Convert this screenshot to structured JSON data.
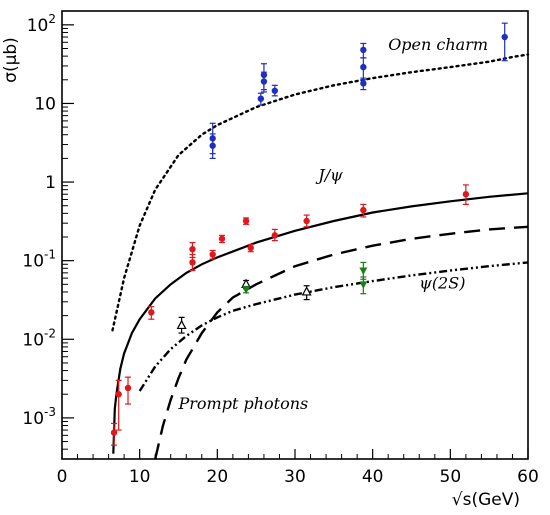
{
  "chart_data": {
    "type": "scatter",
    "xlabel": "√s(GeV)",
    "ylabel": "σ(μb)",
    "xlim": [
      0,
      60
    ],
    "ylim": [
      0.0003,
      150
    ],
    "y_scale": "log",
    "grid": false,
    "x_ticks": [
      0,
      10,
      20,
      30,
      40,
      50,
      60
    ],
    "y_ticks": [
      {
        "value": 0.001,
        "mantissa": "10",
        "exp": "-3"
      },
      {
        "value": 0.01,
        "mantissa": "10",
        "exp": "-2"
      },
      {
        "value": 0.1,
        "mantissa": "10",
        "exp": "-1"
      },
      {
        "value": 1,
        "mantissa": "1",
        "exp": ""
      },
      {
        "value": 10,
        "mantissa": "10",
        "exp": ""
      },
      {
        "value": 100,
        "mantissa": "10",
        "exp": "2"
      }
    ],
    "annotations": [
      {
        "text": "Open charm",
        "x": 42,
        "y": 48
      },
      {
        "text": "J/ψ",
        "x": 33,
        "y": 1.05
      },
      {
        "text": "ψ(2S)",
        "x": 46,
        "y": 0.044
      },
      {
        "text": "Prompt photons",
        "x": 15,
        "y": 0.0013
      }
    ],
    "series": [
      {
        "kind": "points",
        "marker": "circle",
        "color": "#1f2fbf",
        "points": [
          {
            "x": 19.4,
            "y": 3.6,
            "lo": 2.3,
            "hi": 5.6
          },
          {
            "x": 19.4,
            "y": 2.9,
            "lo": 2.0,
            "hi": 4.1
          },
          {
            "x": 25.6,
            "y": 11.5,
            "lo": 9.5,
            "hi": 13.5
          },
          {
            "x": 26.0,
            "y": 23,
            "lo": 15,
            "hi": 32
          },
          {
            "x": 26.0,
            "y": 19,
            "lo": 14,
            "hi": 25
          },
          {
            "x": 27.4,
            "y": 14.5,
            "lo": 12.5,
            "hi": 17
          },
          {
            "x": 38.8,
            "y": 48,
            "lo": 38,
            "hi": 58
          },
          {
            "x": 38.8,
            "y": 29,
            "lo": 20,
            "hi": 38
          },
          {
            "x": 38.8,
            "y": 18,
            "lo": 15,
            "hi": 21
          },
          {
            "x": 57.0,
            "y": 70,
            "lo": 35,
            "hi": 105
          }
        ]
      },
      {
        "kind": "points",
        "marker": "circle",
        "color": "#e0181c",
        "points": [
          {
            "x": 6.7,
            "y": 0.00065,
            "lo": 0.00045,
            "hi": 0.00085
          },
          {
            "x": 7.3,
            "y": 0.002,
            "lo": 0.0007,
            "hi": 0.003
          },
          {
            "x": 8.5,
            "y": 0.0024,
            "lo": 0.0015,
            "hi": 0.0033
          },
          {
            "x": 11.5,
            "y": 0.022,
            "lo": 0.018,
            "hi": 0.026
          },
          {
            "x": 16.8,
            "y": 0.14,
            "lo": 0.11,
            "hi": 0.17
          },
          {
            "x": 16.8,
            "y": 0.095,
            "lo": 0.075,
            "hi": 0.12
          },
          {
            "x": 19.4,
            "y": 0.12,
            "lo": 0.105,
            "hi": 0.135
          },
          {
            "x": 20.6,
            "y": 0.19,
            "lo": 0.17,
            "hi": 0.21
          },
          {
            "x": 23.7,
            "y": 0.32,
            "lo": 0.29,
            "hi": 0.35
          },
          {
            "x": 24.3,
            "y": 0.145,
            "lo": 0.13,
            "hi": 0.16
          },
          {
            "x": 27.4,
            "y": 0.21,
            "lo": 0.18,
            "hi": 0.25
          },
          {
            "x": 31.5,
            "y": 0.32,
            "lo": 0.27,
            "hi": 0.38
          },
          {
            "x": 38.8,
            "y": 0.44,
            "lo": 0.36,
            "hi": 0.52
          },
          {
            "x": 52.0,
            "y": 0.7,
            "lo": 0.52,
            "hi": 0.92
          }
        ]
      },
      {
        "kind": "points",
        "marker": "open-triangle-up",
        "color": "#000000",
        "points": [
          {
            "x": 15.4,
            "y": 0.015,
            "lo": 0.012,
            "hi": 0.019
          },
          {
            "x": 23.7,
            "y": 0.05,
            "lo": 0.044,
            "hi": 0.056
          },
          {
            "x": 31.5,
            "y": 0.04,
            "lo": 0.032,
            "hi": 0.048
          }
        ]
      },
      {
        "kind": "points",
        "marker": "triangle-down",
        "color": "#1a7f1a",
        "points": [
          {
            "x": 23.7,
            "y": 0.043,
            "lo": 0.039,
            "hi": 0.047
          },
          {
            "x": 38.8,
            "y": 0.075,
            "lo": 0.058,
            "hi": 0.095
          },
          {
            "x": 38.8,
            "y": 0.05,
            "lo": 0.038,
            "hi": 0.062
          }
        ]
      },
      {
        "kind": "curve",
        "style": "dotted",
        "label": "Open charm",
        "x": [
          6.5,
          8,
          10,
          12,
          15,
          18,
          20,
          25,
          30,
          35,
          40,
          45,
          50,
          55,
          58,
          60
        ],
        "y": [
          0.013,
          0.06,
          0.28,
          0.8,
          2.2,
          4.0,
          5.3,
          9.0,
          13.0,
          17.0,
          21.0,
          25.0,
          29.0,
          34.0,
          39.0,
          42.0
        ]
      },
      {
        "kind": "curve",
        "style": "solid",
        "label": "J/ψ",
        "x": [
          6.6,
          6.8,
          7.0,
          7.5,
          8,
          9,
          10,
          12,
          14,
          16,
          18,
          20,
          25,
          30,
          35,
          40,
          45,
          50,
          55,
          60
        ],
        "y": [
          0.00035,
          0.0013,
          0.002,
          0.0042,
          0.0066,
          0.012,
          0.018,
          0.033,
          0.05,
          0.07,
          0.09,
          0.11,
          0.17,
          0.24,
          0.32,
          0.41,
          0.49,
          0.57,
          0.65,
          0.72
        ]
      },
      {
        "kind": "curve",
        "style": "dashed",
        "label": "Prompt photons",
        "x": [
          12,
          13,
          14,
          15,
          16,
          18,
          20,
          22,
          25,
          30,
          35,
          40,
          45,
          50,
          55,
          60
        ],
        "y": [
          0.0003,
          0.0008,
          0.0017,
          0.0032,
          0.0055,
          0.012,
          0.022,
          0.034,
          0.05,
          0.085,
          0.12,
          0.155,
          0.19,
          0.22,
          0.25,
          0.27
        ]
      },
      {
        "kind": "curve",
        "style": "dash-dot",
        "label": "ψ(2S)",
        "x": [
          10,
          12,
          14,
          16,
          18,
          20,
          22,
          25,
          30,
          35,
          40,
          45,
          50,
          55,
          60
        ],
        "y": [
          0.0022,
          0.0045,
          0.0075,
          0.011,
          0.015,
          0.019,
          0.023,
          0.028,
          0.037,
          0.046,
          0.055,
          0.065,
          0.075,
          0.085,
          0.095
        ]
      }
    ]
  }
}
